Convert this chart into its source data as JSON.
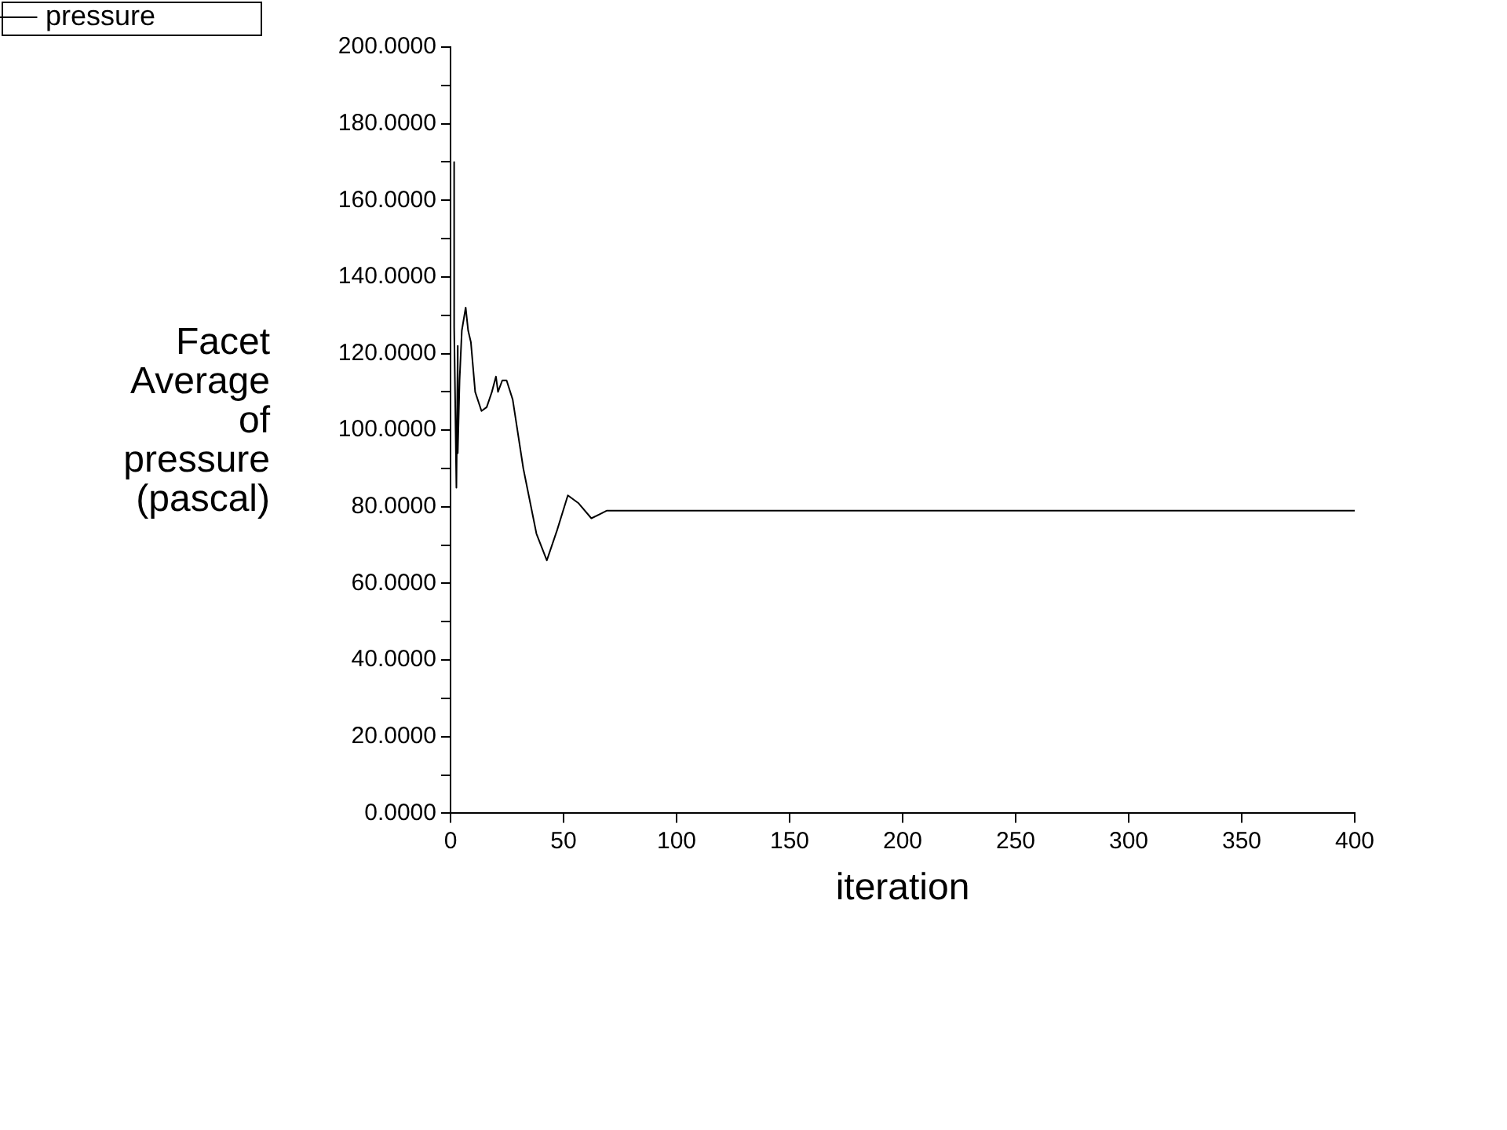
{
  "chart_data": {
    "type": "line",
    "xlabel": "iteration",
    "ylabel": "Facet Average of pressure (pascal)",
    "legend": "top left",
    "grid": false,
    "marker": "none",
    "line_style": "solid",
    "xlim": [
      0,
      400
    ],
    "xticks": [
      0,
      50,
      100,
      150,
      200,
      250,
      300,
      350,
      400
    ],
    "ylim": [
      0,
      200
    ],
    "yticks": [
      {
        "value": 0,
        "label": "0.0000"
      },
      {
        "value": 10,
        "label": null
      },
      {
        "value": 20,
        "label": "20.0000"
      },
      {
        "value": 30,
        "label": null
      },
      {
        "value": 40,
        "label": "40.0000"
      },
      {
        "value": 50,
        "label": null
      },
      {
        "value": 60,
        "label": "60.0000"
      },
      {
        "value": 70,
        "label": null
      },
      {
        "value": 80,
        "label": "80.0000"
      },
      {
        "value": 90,
        "label": null
      },
      {
        "value": 100,
        "label": "100.0000"
      },
      {
        "value": 110,
        "label": null
      },
      {
        "value": 120,
        "label": "120.0000"
      },
      {
        "value": 130,
        "label": null
      },
      {
        "value": 140,
        "label": "140.0000"
      },
      {
        "value": 150,
        "label": null
      },
      {
        "value": 160,
        "label": "160.0000"
      },
      {
        "value": 170,
        "label": null
      },
      {
        "value": 180,
        "label": "180.0000"
      },
      {
        "value": 190,
        "label": null
      },
      {
        "value": 200,
        "label": "200.0000"
      }
    ],
    "series": [
      {
        "name": "pressure",
        "color": "#000000",
        "x": [
          1.6,
          1.6,
          2.6,
          3.2,
          3.2,
          4,
          5,
          6.7,
          7.8,
          9,
          10.9,
          13.7,
          16,
          18.3,
          20.1,
          21,
          22.9,
          24.8,
          27.5,
          32.2,
          38,
          42.6,
          47.2,
          51.9,
          56.5,
          62.3,
          69.2,
          73.8,
          78.5,
          400
        ],
        "values": [
          170,
          127,
          85,
          122,
          94,
          113,
          126,
          132,
          126,
          123,
          110,
          105,
          106,
          110,
          114,
          110,
          113,
          113,
          108,
          90,
          73,
          66,
          74,
          83,
          81,
          77,
          79,
          79,
          79,
          79
        ]
      }
    ]
  }
}
